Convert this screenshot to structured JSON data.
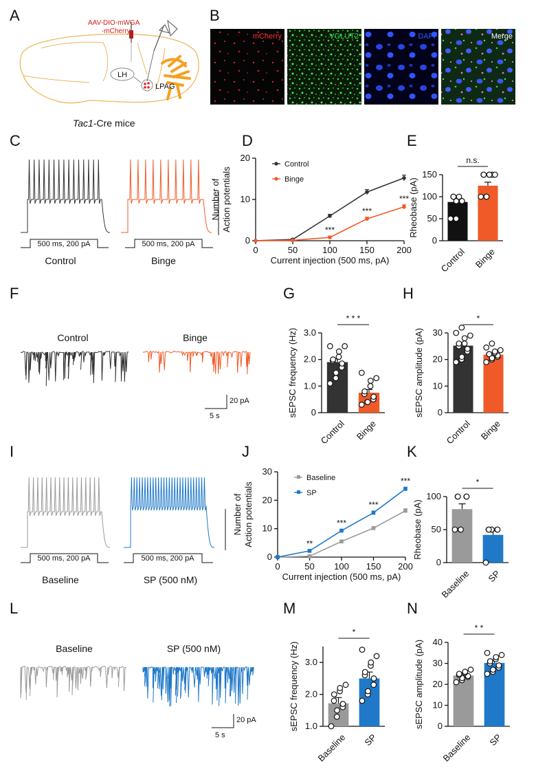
{
  "panels": {
    "A": "A",
    "B": "B",
    "C": "C",
    "D": "D",
    "E": "E",
    "F": "F",
    "G": "G",
    "H": "H",
    "I": "I",
    "J": "J",
    "K": "K",
    "L": "L",
    "M": "M",
    "N": "N"
  },
  "panelA": {
    "virus_line1": "AAV-DIO-mWGA",
    "virus_line2": "-mCherry",
    "lh": "LH",
    "lpag": "LPAG",
    "caption_italic": "Tac1",
    "caption_rest": "-Cre mice"
  },
  "panelB": {
    "channels": [
      {
        "title": "mCherry",
        "color": "#ff3030"
      },
      {
        "title": "VGLUT2",
        "color": "#34d24a"
      },
      {
        "title": "DAPI",
        "color": "#2f5bff"
      },
      {
        "title": "Merge",
        "color": "#ffffff"
      }
    ]
  },
  "panelC": {
    "stim": "500 ms, 200 pA",
    "left": "Control",
    "right": "Binge",
    "colors": {
      "control": "#333333",
      "binge": "#f05a28"
    }
  },
  "panelF": {
    "left": "Control",
    "right": "Binge",
    "scale_y": "20 pA",
    "scale_x": "5 s"
  },
  "panelI": {
    "stim": "500 ms, 200 pA",
    "left": "Baseline",
    "right": "SP (500 nM)",
    "colors": {
      "baseline": "#9a9a9a",
      "sp": "#1f78c8"
    }
  },
  "panelL": {
    "left": "Baseline",
    "right": "SP (500 nM)",
    "scale_y": "20 pA",
    "scale_x": "5 s"
  },
  "chart_data": [
    {
      "id": "D",
      "type": "line",
      "ylabel_line1": "Number of",
      "ylabel_line2": "Action potentials",
      "xlabel": "Current injection (500 ms, pA)",
      "x": [
        0,
        50,
        100,
        150,
        200
      ],
      "xlim": [
        0,
        200
      ],
      "ylim": [
        0,
        20
      ],
      "yticks": [
        0,
        10,
        20
      ],
      "series": [
        {
          "name": "Control",
          "color": "#333333",
          "values": [
            0,
            0.3,
            6,
            11.8,
            15.2
          ],
          "err": [
            0,
            0.2,
            0.4,
            0.6,
            0.7
          ]
        },
        {
          "name": "Binge",
          "color": "#f05a28",
          "values": [
            0,
            0.1,
            0.8,
            5.3,
            8.2
          ],
          "err": [
            0,
            0.1,
            0.3,
            0.4,
            0.5
          ]
        }
      ],
      "sig": [
        {
          "x": 100,
          "text": "***"
        },
        {
          "x": 150,
          "text": "***"
        },
        {
          "x": 200,
          "text": "***"
        }
      ]
    },
    {
      "id": "E",
      "type": "bar",
      "ylabel": "Rheobase (pA)",
      "categories": [
        "Control",
        "Binge"
      ],
      "values": [
        88,
        125
      ],
      "sem": [
        10,
        8
      ],
      "colors": [
        "#111111",
        "#f05a28"
      ],
      "ylim": [
        0,
        150
      ],
      "yticks": [
        0,
        50,
        100,
        150
      ],
      "sig": "n.s.",
      "points": [
        [
          50,
          50,
          90,
          90,
          90,
          100,
          100,
          100
        ],
        [
          100,
          100,
          100,
          150,
          150,
          150,
          150,
          150,
          150,
          150
        ]
      ]
    },
    {
      "id": "G",
      "type": "bar",
      "ylabel": "sEPSC frequency (Hz)",
      "categories": [
        "Control",
        "Binge"
      ],
      "values": [
        1.9,
        0.75
      ],
      "sem": [
        0.12,
        0.12
      ],
      "colors": [
        "#333333",
        "#f05a28"
      ],
      "ylim": [
        0,
        3
      ],
      "yticks": [
        "0",
        "1.0",
        "2.0",
        "3.0"
      ],
      "sig": "* * *",
      "points": [
        [
          1.1,
          1.3,
          1.5,
          1.7,
          1.85,
          1.95,
          2.0,
          2.1,
          2.3,
          2.5,
          2.5
        ],
        [
          0.3,
          0.4,
          0.4,
          0.5,
          0.6,
          0.7,
          0.8,
          1.0,
          1.2,
          1.3,
          1.5
        ]
      ]
    },
    {
      "id": "H",
      "type": "bar",
      "ylabel": "sEPSC amplitude (pA)",
      "categories": [
        "Control",
        "Binge"
      ],
      "values": [
        25.2,
        21.8
      ],
      "sem": [
        1.0,
        0.6
      ],
      "colors": [
        "#333333",
        "#f05a28"
      ],
      "ylim": [
        0,
        30
      ],
      "yticks": [
        0,
        10,
        20,
        30
      ],
      "sig": "*",
      "points": [
        [
          19,
          20,
          21,
          23,
          24,
          25,
          26,
          26,
          28,
          29,
          30,
          32
        ],
        [
          19,
          20,
          20.5,
          21,
          21.5,
          22,
          22,
          22.5,
          23,
          23.5,
          24.5,
          26
        ]
      ]
    },
    {
      "id": "J",
      "type": "line",
      "ylabel_line1": "Number of",
      "ylabel_line2": "Action potentials",
      "xlabel": "Current injection (500 ms, pA)",
      "x": [
        0,
        50,
        100,
        150,
        200
      ],
      "xlim": [
        0,
        200
      ],
      "ylim": [
        0,
        30
      ],
      "yticks": [
        0,
        10,
        20,
        30
      ],
      "series": [
        {
          "name": "Baseline",
          "color": "#9a9a9a",
          "values": [
            0,
            0.3,
            5.5,
            10.2,
            16.3
          ],
          "err": [
            0,
            0.2,
            0.4,
            0.5,
            0.7
          ]
        },
        {
          "name": "SP",
          "color": "#1f78c8",
          "values": [
            0,
            2.2,
            9.3,
            15.6,
            24.0
          ],
          "err": [
            0,
            0.3,
            0.5,
            0.6,
            0.6
          ]
        }
      ],
      "sig": [
        {
          "x": 50,
          "text": "**"
        },
        {
          "x": 100,
          "text": "***"
        },
        {
          "x": 150,
          "text": "***"
        },
        {
          "x": 200,
          "text": "***"
        }
      ]
    },
    {
      "id": "K",
      "type": "bar",
      "ylabel": "Rheobase (pA)",
      "categories": [
        "Baseline",
        "SP"
      ],
      "values": [
        81,
        42
      ],
      "sem": [
        8,
        6
      ],
      "colors": [
        "#9a9a9a",
        "#1f78c8"
      ],
      "ylim": [
        0,
        100
      ],
      "yticks": [
        0,
        50,
        100
      ],
      "sig": "*",
      "points": [
        [
          50,
          50,
          50,
          100,
          100,
          100,
          100
        ],
        [
          0,
          50,
          50,
          50,
          50,
          50,
          50
        ]
      ]
    },
    {
      "id": "M",
      "type": "bar",
      "ylabel": "sEPSC frequency (Hz)",
      "categories": [
        "Baseline",
        "SP"
      ],
      "values": [
        1.72,
        2.5
      ],
      "sem": [
        0.18,
        0.2
      ],
      "colors": [
        "#9a9a9a",
        "#1f78c8"
      ],
      "ylim": [
        1,
        3.5
      ],
      "yticks": [
        "1.0",
        "2.0",
        "3.0"
      ],
      "sig": "*",
      "points": [
        [
          1.0,
          1.3,
          1.5,
          1.6,
          1.7,
          1.8,
          2.0,
          2.1,
          2.2,
          2.3
        ],
        [
          1.8,
          2.0,
          2.1,
          2.3,
          2.5,
          2.6,
          2.7,
          2.9,
          3.0,
          3.2,
          3.4
        ]
      ]
    },
    {
      "id": "N",
      "type": "bar",
      "ylabel": "sEPSC amplitude (pA)",
      "categories": [
        "Baseline",
        "SP"
      ],
      "values": [
        24.2,
        30.2
      ],
      "sem": [
        0.7,
        1.0
      ],
      "colors": [
        "#9a9a9a",
        "#1f78c8"
      ],
      "ylim": [
        0,
        40
      ],
      "yticks": [
        0,
        10,
        20,
        30,
        40
      ],
      "sig": "*  *",
      "points": [
        [
          21,
          22,
          23,
          23.5,
          24,
          24.5,
          25,
          25.5,
          26,
          27
        ],
        [
          25,
          26,
          27,
          28,
          29,
          30,
          31,
          32,
          33,
          34,
          35
        ]
      ]
    }
  ]
}
